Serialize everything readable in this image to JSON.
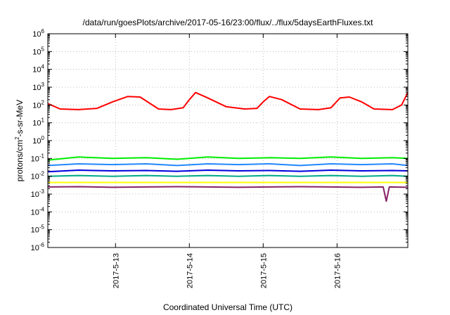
{
  "chart_data": {
    "type": "line",
    "title": "/data/run/goesPlots/archive/2017-05-16/23:00/flux/../flux/5daysEarthFluxes.txt",
    "ylabel": {
      "base": "protons/cm",
      "sup": "2",
      "rest": "-s-sr-MeV"
    },
    "xlabel": "Coordinated Universal Time (UTC)",
    "x_unit": "days",
    "x_range": [
      "2017-05-12T02:00",
      "2017-05-16T23:00"
    ],
    "ylim": [
      1e-06,
      1000000.0
    ],
    "y_scale": "log",
    "grid": true,
    "legend": "none",
    "x_ticks": [
      {
        "label": "2017-5-13",
        "date": "2017-05-13T00:00"
      },
      {
        "label": "2017-5-14",
        "date": "2017-05-14T00:00"
      },
      {
        "label": "2017-5-15",
        "date": "2017-05-15T00:00"
      },
      {
        "label": "2017-5-16",
        "date": "2017-05-16T00:00"
      }
    ],
    "y_ticks": [
      {
        "base": "10",
        "exp": "-6",
        "value": 1e-06
      },
      {
        "base": "10",
        "exp": "-5",
        "value": 1e-05
      },
      {
        "base": "10",
        "exp": "-4",
        "value": 0.0001
      },
      {
        "base": "10",
        "exp": "-3",
        "value": 0.001
      },
      {
        "base": "10",
        "exp": "-2",
        "value": 0.01
      },
      {
        "base": "10",
        "exp": "-1",
        "value": 0.1
      },
      {
        "base": "10",
        "exp": "0",
        "value": 1
      },
      {
        "base": "10",
        "exp": "1",
        "value": 10
      },
      {
        "base": "10",
        "exp": "2",
        "value": 100
      },
      {
        "base": "10",
        "exp": "3",
        "value": 1000
      },
      {
        "base": "10",
        "exp": "4",
        "value": 10000
      },
      {
        "base": "10",
        "exp": "5",
        "value": 100000
      },
      {
        "base": "10",
        "exp": "6",
        "value": 1000000
      }
    ],
    "series": [
      {
        "color": "#ff0000",
        "x": [
          "2017-05-12T02:00",
          "2017-05-12T06:00",
          "2017-05-12T12:00",
          "2017-05-12T18:00",
          "2017-05-12T23:00",
          "2017-05-13T04:00",
          "2017-05-13T08:00",
          "2017-05-13T14:00",
          "2017-05-13T18:00",
          "2017-05-13T22:00",
          "2017-05-14T00:00",
          "2017-05-14T02:00",
          "2017-05-14T06:00",
          "2017-05-14T12:00",
          "2017-05-14T18:00",
          "2017-05-14T22:00",
          "2017-05-15T00:00",
          "2017-05-15T02:00",
          "2017-05-15T06:00",
          "2017-05-15T12:00",
          "2017-05-15T18:00",
          "2017-05-15T22:00",
          "2017-05-16T01:00",
          "2017-05-16T04:00",
          "2017-05-16T08:00",
          "2017-05-16T12:00",
          "2017-05-16T18:00",
          "2017-05-16T21:00",
          "2017-05-16T23:00"
        ],
        "y": [
          120,
          60,
          55,
          65,
          150,
          300,
          280,
          60,
          55,
          70,
          200,
          500,
          250,
          80,
          60,
          65,
          150,
          300,
          200,
          60,
          55,
          70,
          250,
          280,
          150,
          60,
          55,
          100,
          500
        ]
      },
      {
        "color": "#00ee00",
        "x": [
          "2017-05-12T02:00",
          "2017-05-12T12:00",
          "2017-05-12T23:00",
          "2017-05-13T10:00",
          "2017-05-13T20:00",
          "2017-05-14T06:00",
          "2017-05-14T16:00",
          "2017-05-15T02:00",
          "2017-05-15T12:00",
          "2017-05-15T22:00",
          "2017-05-16T08:00",
          "2017-05-16T18:00",
          "2017-05-16T23:00"
        ],
        "y": [
          0.08,
          0.12,
          0.1,
          0.11,
          0.09,
          0.12,
          0.1,
          0.11,
          0.1,
          0.12,
          0.1,
          0.11,
          0.1
        ]
      },
      {
        "color": "#2288ff",
        "x": [
          "2017-05-12T02:00",
          "2017-05-12T12:00",
          "2017-05-12T23:00",
          "2017-05-13T10:00",
          "2017-05-13T20:00",
          "2017-05-14T06:00",
          "2017-05-14T16:00",
          "2017-05-15T02:00",
          "2017-05-15T12:00",
          "2017-05-15T22:00",
          "2017-05-16T08:00",
          "2017-05-16T18:00",
          "2017-05-16T23:00"
        ],
        "y": [
          0.04,
          0.05,
          0.045,
          0.05,
          0.04,
          0.05,
          0.045,
          0.05,
          0.04,
          0.05,
          0.045,
          0.05,
          0.04
        ]
      },
      {
        "color": "#0000dd",
        "x": [
          "2017-05-12T02:00",
          "2017-05-12T12:00",
          "2017-05-12T23:00",
          "2017-05-13T10:00",
          "2017-05-13T20:00",
          "2017-05-14T06:00",
          "2017-05-14T16:00",
          "2017-05-15T02:00",
          "2017-05-15T12:00",
          "2017-05-15T22:00",
          "2017-05-16T08:00",
          "2017-05-16T18:00",
          "2017-05-16T23:00"
        ],
        "y": [
          0.018,
          0.022,
          0.02,
          0.021,
          0.019,
          0.022,
          0.02,
          0.021,
          0.019,
          0.022,
          0.02,
          0.021,
          0.02
        ]
      },
      {
        "color": "#00aa88",
        "x": [
          "2017-05-12T02:00",
          "2017-05-12T12:00",
          "2017-05-12T23:00",
          "2017-05-13T10:00",
          "2017-05-13T20:00",
          "2017-05-14T06:00",
          "2017-05-14T16:00",
          "2017-05-15T02:00",
          "2017-05-15T12:00",
          "2017-05-15T22:00",
          "2017-05-16T08:00",
          "2017-05-16T18:00",
          "2017-05-16T23:00"
        ],
        "y": [
          0.01,
          0.011,
          0.01,
          0.011,
          0.01,
          0.011,
          0.01,
          0.011,
          0.01,
          0.011,
          0.01,
          0.011,
          0.01
        ]
      },
      {
        "color": "#ffff00",
        "x": [
          "2017-05-12T02:00",
          "2017-05-13T00:00",
          "2017-05-14T00:00",
          "2017-05-15T00:00",
          "2017-05-16T00:00",
          "2017-05-16T23:00"
        ],
        "y": [
          0.0045,
          0.0045,
          0.0045,
          0.0045,
          0.0045,
          0.0045
        ]
      },
      {
        "color": "#882266",
        "x": [
          "2017-05-12T02:00",
          "2017-05-12T12:00",
          "2017-05-12T23:00",
          "2017-05-13T10:00",
          "2017-05-13T20:00",
          "2017-05-14T06:00",
          "2017-05-14T16:00",
          "2017-05-15T02:00",
          "2017-05-15T12:00",
          "2017-05-15T22:00",
          "2017-05-16T08:00",
          "2017-05-16T15:00",
          "2017-05-16T16:00",
          "2017-05-16T17:00",
          "2017-05-16T23:00"
        ],
        "y": [
          0.0025,
          0.0026,
          0.0024,
          0.0025,
          0.0026,
          0.0025,
          0.0024,
          0.0025,
          0.0026,
          0.0025,
          0.0024,
          0.0025,
          0.0004,
          0.0025,
          0.0024
        ]
      }
    ]
  }
}
